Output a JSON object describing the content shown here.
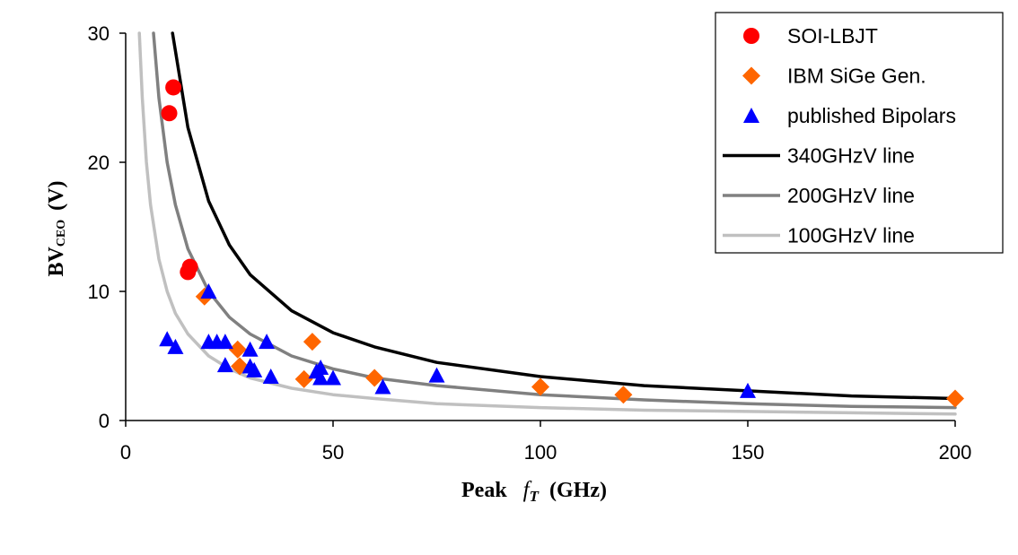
{
  "chart_data": {
    "type": "scatter",
    "xlabel_main": "Peak",
    "xlabel_sym": "f",
    "xlabel_sub": "T",
    "xlabel_unit": "(GHz)",
    "ylabel_main": "BV",
    "ylabel_sub": "CEO",
    "ylabel_unit": "(V)",
    "xlim": [
      0,
      200
    ],
    "ylim": [
      0,
      30
    ],
    "xticks": [
      "0",
      "50",
      "100",
      "150",
      "200"
    ],
    "xtick_values": [
      0,
      50,
      100,
      150,
      200
    ],
    "yticks": [
      "0",
      "10",
      "20",
      "30"
    ],
    "ytick_values": [
      0,
      10,
      20,
      30
    ],
    "grid": false,
    "legend_position": "top-right",
    "series": [
      {
        "name": "SOI-LBJT",
        "kind": "points",
        "marker": "circle",
        "color": "#ff0000",
        "x": [
          11.5,
          10.5,
          15,
          15.5
        ],
        "y": [
          25.8,
          23.8,
          11.5,
          11.9
        ]
      },
      {
        "name": "IBM SiGe Gen.",
        "kind": "points",
        "marker": "diamond",
        "color": "#ff6600",
        "x": [
          19,
          27,
          27.5,
          43,
          45,
          60,
          100,
          120,
          200
        ],
        "y": [
          9.6,
          5.5,
          4.2,
          3.2,
          6.1,
          3.3,
          2.6,
          2.0,
          1.7
        ]
      },
      {
        "name": "published Bipolars",
        "kind": "points",
        "marker": "triangle",
        "color": "#0000ff",
        "x": [
          10,
          12,
          20,
          20,
          22,
          24,
          24,
          30,
          30,
          31,
          34,
          35,
          46,
          47,
          47,
          50,
          62,
          75,
          150
        ],
        "y": [
          6.3,
          5.7,
          10.0,
          6.1,
          6.1,
          6.1,
          4.3,
          5.5,
          4.2,
          3.9,
          6.1,
          3.4,
          3.8,
          4.1,
          3.3,
          3.3,
          2.6,
          3.5,
          2.3
        ]
      },
      {
        "name": "340GHzV line",
        "kind": "line",
        "color": "#000000",
        "product": 340,
        "x": [
          11.3,
          15,
          20,
          25,
          30,
          40,
          50,
          60,
          75,
          100,
          125,
          150,
          175,
          200
        ],
        "y": [
          30,
          22.7,
          17,
          13.6,
          11.3,
          8.5,
          6.8,
          5.7,
          4.5,
          3.4,
          2.7,
          2.3,
          1.9,
          1.7
        ]
      },
      {
        "name": "200GHzV line",
        "kind": "line",
        "color": "#808080",
        "product": 200,
        "x": [
          6.7,
          8,
          10,
          12,
          15,
          20,
          25,
          30,
          40,
          50,
          60,
          75,
          100,
          125,
          150,
          175,
          200
        ],
        "y": [
          30,
          25,
          20,
          16.7,
          13.3,
          10,
          8,
          6.7,
          5,
          4,
          3.3,
          2.7,
          2,
          1.6,
          1.3,
          1.1,
          1
        ]
      },
      {
        "name": "100GHzV line",
        "kind": "line",
        "color": "#c0c0c0",
        "product": 100,
        "x": [
          3.3,
          4,
          5,
          6,
          8,
          10,
          12,
          15,
          20,
          25,
          30,
          40,
          50,
          60,
          75,
          100,
          125,
          150,
          175,
          200
        ],
        "y": [
          30,
          25,
          20,
          16.7,
          12.5,
          10,
          8.3,
          6.7,
          5,
          4,
          3.3,
          2.5,
          2,
          1.7,
          1.3,
          1,
          0.8,
          0.7,
          0.6,
          0.5
        ]
      }
    ]
  }
}
